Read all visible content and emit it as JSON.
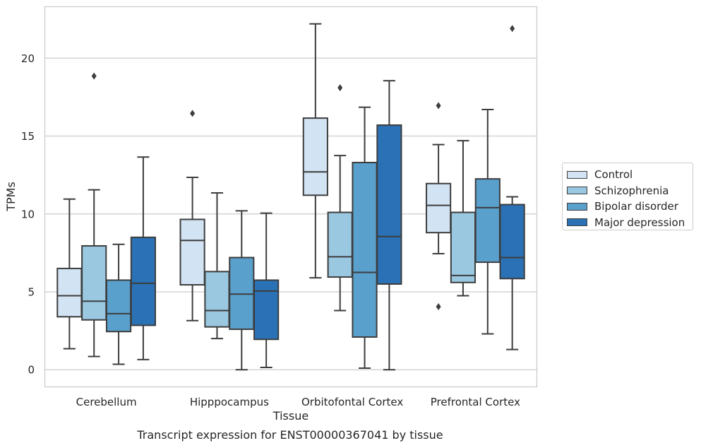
{
  "caption": "Transcript expression for ENST00000367041 by tissue",
  "chart_data": {
    "type": "box",
    "xlabel": "Tissue",
    "ylabel": "TPMs",
    "ylim": [
      -1.1,
      23.3
    ],
    "yticks": [
      0,
      5,
      10,
      15,
      20
    ],
    "grid": "horizontal",
    "legend_position": "right",
    "categories": [
      "Cerebellum",
      "Hipppocampus",
      "Orbitofontal Cortex",
      "Prefrontal Cortex"
    ],
    "series": [
      {
        "name": "Control",
        "color": "#d2e3f3",
        "boxes": [
          {
            "min": 1.35,
            "q1": 3.4,
            "median": 4.75,
            "q3": 6.5,
            "max": 10.95,
            "outliers": []
          },
          {
            "min": 3.15,
            "q1": 5.45,
            "median": 8.3,
            "q3": 9.65,
            "max": 12.35,
            "outliers": [
              16.45
            ]
          },
          {
            "min": 5.9,
            "q1": 11.2,
            "median": 12.7,
            "q3": 16.15,
            "max": 22.2,
            "outliers": []
          },
          {
            "min": 7.45,
            "q1": 8.8,
            "median": 10.55,
            "q3": 11.95,
            "max": 14.45,
            "outliers": [
              4.05,
              16.95
            ]
          }
        ]
      },
      {
        "name": "Schizophrenia",
        "color": "#9ac8e0",
        "boxes": [
          {
            "min": 0.85,
            "q1": 3.2,
            "median": 4.4,
            "q3": 7.95,
            "max": 11.55,
            "outliers": [
              18.85
            ]
          },
          {
            "min": 2.0,
            "q1": 2.75,
            "median": 3.8,
            "q3": 6.3,
            "max": 11.35,
            "outliers": []
          },
          {
            "min": 3.8,
            "q1": 5.95,
            "median": 7.25,
            "q3": 10.1,
            "max": 13.75,
            "outliers": [
              18.1
            ]
          },
          {
            "min": 4.75,
            "q1": 5.6,
            "median": 6.05,
            "q3": 10.1,
            "max": 14.7,
            "outliers": []
          }
        ]
      },
      {
        "name": "Bipolar disorder",
        "color": "#5aa0cd",
        "boxes": [
          {
            "min": 0.35,
            "q1": 2.45,
            "median": 3.6,
            "q3": 5.75,
            "max": 8.05,
            "outliers": []
          },
          {
            "min": 0.0,
            "q1": 2.6,
            "median": 4.85,
            "q3": 7.2,
            "max": 10.2,
            "outliers": []
          },
          {
            "min": 0.1,
            "q1": 2.1,
            "median": 6.25,
            "q3": 13.3,
            "max": 16.85,
            "outliers": []
          },
          {
            "min": 2.3,
            "q1": 6.9,
            "median": 10.4,
            "q3": 12.25,
            "max": 16.7,
            "outliers": []
          }
        ]
      },
      {
        "name": "Major depression",
        "color": "#2a72b5",
        "boxes": [
          {
            "min": 0.65,
            "q1": 2.85,
            "median": 5.55,
            "q3": 8.5,
            "max": 13.65,
            "outliers": []
          },
          {
            "min": 0.15,
            "q1": 1.95,
            "median": 5.05,
            "q3": 5.75,
            "max": 10.05,
            "outliers": []
          },
          {
            "min": 0.0,
            "q1": 5.5,
            "median": 8.55,
            "q3": 15.7,
            "max": 18.55,
            "outliers": []
          },
          {
            "min": 1.3,
            "q1": 5.85,
            "median": 7.2,
            "q3": 10.6,
            "max": 11.1,
            "outliers": [
              21.9
            ]
          }
        ]
      }
    ]
  }
}
